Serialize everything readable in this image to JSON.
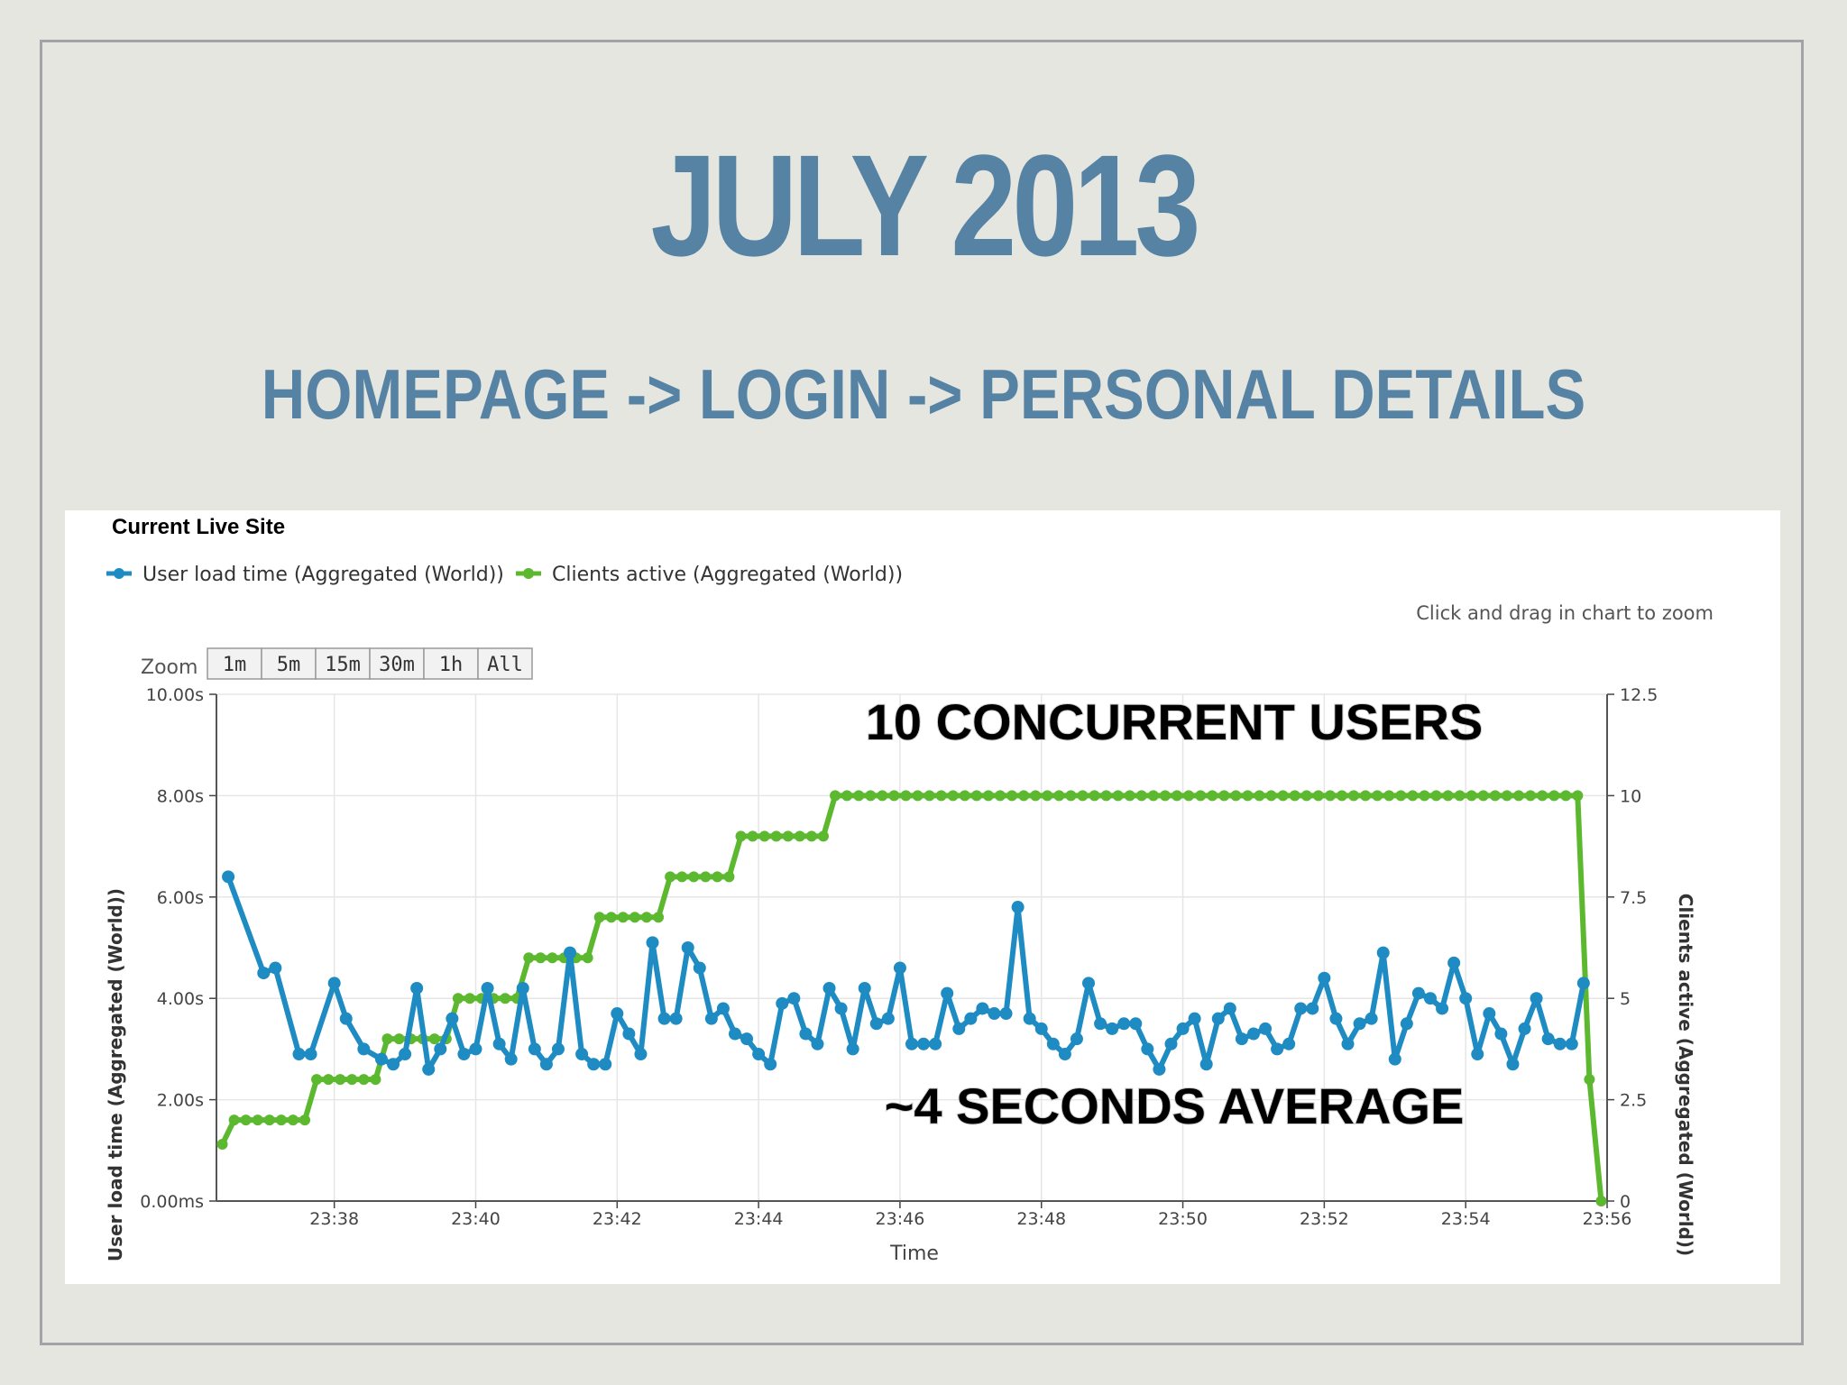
{
  "slide": {
    "title": "JULY 2013",
    "subtitle": "HOMEPAGE -> LOGIN -> PERSONAL DETAILS"
  },
  "panel": {
    "title": "Current Live Site",
    "hint": "Click and drag in chart to zoom",
    "zoom_label": "Zoom",
    "zoom_buttons": [
      "1m",
      "5m",
      "15m",
      "30m",
      "1h",
      "All"
    ]
  },
  "annotations": {
    "top": "10 CONCURRENT USERS",
    "bottom": "~4 SECONDS AVERAGE"
  },
  "colors": {
    "title": "#5683a3",
    "load_series": "#1e8bc3",
    "clients_series": "#5cb82e",
    "grid": "#e6e6e6"
  },
  "chart_data": {
    "type": "line",
    "xlabel": "Time",
    "xlim": [
      "23:36:20",
      "23:56:00"
    ],
    "x_ticks": [
      "23:38",
      "23:40",
      "23:42",
      "23:44",
      "23:46",
      "23:48",
      "23:50",
      "23:52",
      "23:54",
      "23:56"
    ],
    "y_left": {
      "label": "User load time (Aggregated (World))",
      "ylim": [
        0,
        10
      ],
      "ticks": [
        "0.00ms",
        "2.00s",
        "4.00s",
        "6.00s",
        "8.00s",
        "10.00s"
      ]
    },
    "y_right": {
      "label": "Clients active (Aggregated (World))",
      "ylim": [
        0,
        12.5
      ],
      "ticks": [
        "0",
        "2.5",
        "5",
        "7.5",
        "10",
        "12.5"
      ]
    },
    "grid": true,
    "legend": "top-left",
    "series": [
      {
        "name": "User load time (Aggregated (World))",
        "axis": "left",
        "unit": "s",
        "times": [
          "23:36:30",
          "23:37:00",
          "23:37:10",
          "23:37:30",
          "23:37:40",
          "23:38:00",
          "23:38:10",
          "23:38:25",
          "23:38:40",
          "23:38:50",
          "23:39:00",
          "23:39:10",
          "23:39:20",
          "23:39:30",
          "23:39:40",
          "23:39:50",
          "23:40:00",
          "23:40:10",
          "23:40:20",
          "23:40:30",
          "23:40:40",
          "23:40:50",
          "23:41:00",
          "23:41:10",
          "23:41:20",
          "23:41:30",
          "23:41:40",
          "23:41:50",
          "23:42:00",
          "23:42:10",
          "23:42:20",
          "23:42:30",
          "23:42:40",
          "23:42:50",
          "23:43:00",
          "23:43:10",
          "23:43:20",
          "23:43:30",
          "23:43:40",
          "23:43:50",
          "23:44:00",
          "23:44:10",
          "23:44:20",
          "23:44:30",
          "23:44:40",
          "23:44:50",
          "23:45:00",
          "23:45:10",
          "23:45:20",
          "23:45:30",
          "23:45:40",
          "23:45:50",
          "23:46:00",
          "23:46:10",
          "23:46:20",
          "23:46:30",
          "23:46:40",
          "23:46:50",
          "23:47:00",
          "23:47:10",
          "23:47:20",
          "23:47:30",
          "23:47:40",
          "23:47:50",
          "23:48:00",
          "23:48:10",
          "23:48:20",
          "23:48:30",
          "23:48:40",
          "23:48:50",
          "23:49:00",
          "23:49:10",
          "23:49:20",
          "23:49:30",
          "23:49:40",
          "23:49:50",
          "23:50:00",
          "23:50:10",
          "23:50:20",
          "23:50:30",
          "23:50:40",
          "23:50:50",
          "23:51:00",
          "23:51:10",
          "23:51:20",
          "23:51:30",
          "23:51:40",
          "23:51:50",
          "23:52:00",
          "23:52:10",
          "23:52:20",
          "23:52:30",
          "23:52:40",
          "23:52:50",
          "23:53:00",
          "23:53:10",
          "23:53:20",
          "23:53:30",
          "23:53:40",
          "23:53:50",
          "23:54:00",
          "23:54:10",
          "23:54:20",
          "23:54:30",
          "23:54:40",
          "23:54:50",
          "23:55:00",
          "23:55:10",
          "23:55:20",
          "23:55:30",
          "23:55:40"
        ],
        "values": [
          6.4,
          4.5,
          4.6,
          2.9,
          2.9,
          4.3,
          3.6,
          3.0,
          2.8,
          2.7,
          2.9,
          4.2,
          2.6,
          3.0,
          3.6,
          2.9,
          3.0,
          4.2,
          3.1,
          2.8,
          4.2,
          3.0,
          2.7,
          3.0,
          4.9,
          2.9,
          2.7,
          2.7,
          3.7,
          3.3,
          2.9,
          5.1,
          3.6,
          3.6,
          5.0,
          4.6,
          3.6,
          3.8,
          3.3,
          3.2,
          2.9,
          2.7,
          3.9,
          4.0,
          3.3,
          3.1,
          4.2,
          3.8,
          3.0,
          4.2,
          3.5,
          3.6,
          4.6,
          3.1,
          3.1,
          3.1,
          4.1,
          3.4,
          3.6,
          3.8,
          3.7,
          3.7,
          5.8,
          3.6,
          3.4,
          3.1,
          2.9,
          3.2,
          4.3,
          3.5,
          3.4,
          3.5,
          3.5,
          3.0,
          2.6,
          3.1,
          3.4,
          3.6,
          2.7,
          3.6,
          3.8,
          3.2,
          3.3,
          3.4,
          3.0,
          3.1,
          3.8,
          3.8,
          4.4,
          3.6,
          3.1,
          3.5,
          3.6,
          4.9,
          2.8,
          3.5,
          4.1,
          4.0,
          3.8,
          4.7,
          4.0,
          2.9,
          3.7,
          3.3,
          2.7,
          3.4,
          4.0,
          3.2,
          3.1,
          3.1,
          4.3
        ]
      },
      {
        "name": "Clients active (Aggregated (World))",
        "axis": "right",
        "steps": [
          {
            "from": "23:36:25",
            "to": "23:36:25",
            "value": 1.4
          },
          {
            "from": "23:36:35",
            "to": "23:37:35",
            "value": 2
          },
          {
            "from": "23:37:45",
            "to": "23:38:35",
            "value": 3
          },
          {
            "from": "23:38:45",
            "to": "23:39:35",
            "value": 4
          },
          {
            "from": "23:39:45",
            "to": "23:40:35",
            "value": 5
          },
          {
            "from": "23:40:45",
            "to": "23:41:35",
            "value": 6
          },
          {
            "from": "23:41:45",
            "to": "23:42:35",
            "value": 7
          },
          {
            "from": "23:42:45",
            "to": "23:43:35",
            "value": 8
          },
          {
            "from": "23:43:45",
            "to": "23:44:55",
            "value": 9
          },
          {
            "from": "23:45:05",
            "to": "23:55:35",
            "value": 10
          },
          {
            "from": "23:55:45",
            "to": "23:55:45",
            "value": 3
          },
          {
            "from": "23:55:55",
            "to": "23:55:55",
            "value": 0
          }
        ]
      }
    ]
  }
}
